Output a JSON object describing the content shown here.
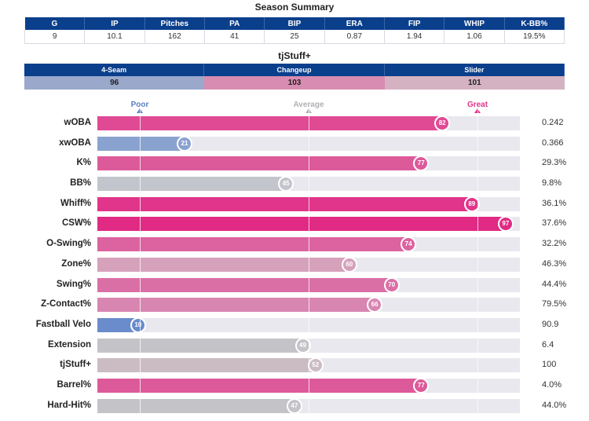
{
  "season_summary": {
    "title": "Season Summary",
    "headers": [
      "G",
      "IP",
      "Pitches",
      "PA",
      "BIP",
      "ERA",
      "FIP",
      "WHIP",
      "K-BB%"
    ],
    "values": [
      "9",
      "10.1",
      "162",
      "41",
      "25",
      "0.87",
      "1.94",
      "1.06",
      "19.5%"
    ]
  },
  "tjstuff": {
    "title": "tjStuff+",
    "pitches": [
      {
        "name": "4-Seam",
        "value": "96",
        "color": "#9aa8cc"
      },
      {
        "name": "Changeup",
        "value": "103",
        "color": "#d98cb2"
      },
      {
        "name": "Slider",
        "value": "101",
        "color": "#d4b2c2"
      }
    ]
  },
  "scale": {
    "poor": {
      "label": "Poor",
      "color": "#5e7ec6"
    },
    "average": {
      "label": "Average",
      "color": "#b0b0b6"
    },
    "great": {
      "label": "Great",
      "color": "#e0358a"
    }
  },
  "metrics": [
    {
      "name": "wOBA",
      "percentile": 82,
      "value": "0.242",
      "color": "#e04a94"
    },
    {
      "name": "xwOBA",
      "percentile": 21,
      "value": "0.366",
      "color": "#8aa2cf"
    },
    {
      "name": "K%",
      "percentile": 77,
      "value": "29.3%",
      "color": "#dd5a9a"
    },
    {
      "name": "BB%",
      "percentile": 45,
      "value": "9.8%",
      "color": "#c3c5cc"
    },
    {
      "name": "Whiff%",
      "percentile": 89,
      "value": "36.1%",
      "color": "#e0358a"
    },
    {
      "name": "CSW%",
      "percentile": 97,
      "value": "37.6%",
      "color": "#e02a84"
    },
    {
      "name": "O-Swing%",
      "percentile": 74,
      "value": "32.2%",
      "color": "#dc63a0"
    },
    {
      "name": "Zone%",
      "percentile": 60,
      "value": "46.3%",
      "color": "#d6a1bb"
    },
    {
      "name": "Swing%",
      "percentile": 70,
      "value": "44.4%",
      "color": "#da6fa6"
    },
    {
      "name": "Z-Contact%",
      "percentile": 66,
      "value": "79.5%",
      "color": "#d886b1"
    },
    {
      "name": "Fastball Velo",
      "percentile": 10,
      "value": "90.9",
      "color": "#6a8ccc"
    },
    {
      "name": "Extension",
      "percentile": 49,
      "value": "6.4",
      "color": "#c4c4c8"
    },
    {
      "name": "tjStuff+",
      "percentile": 52,
      "value": "100",
      "color": "#cbbcc3"
    },
    {
      "name": "Barrel%",
      "percentile": 77,
      "value": "4.0%",
      "color": "#dd5a9a"
    },
    {
      "name": "Hard-Hit%",
      "percentile": 47,
      "value": "44.0%",
      "color": "#c4c4c8"
    }
  ]
}
